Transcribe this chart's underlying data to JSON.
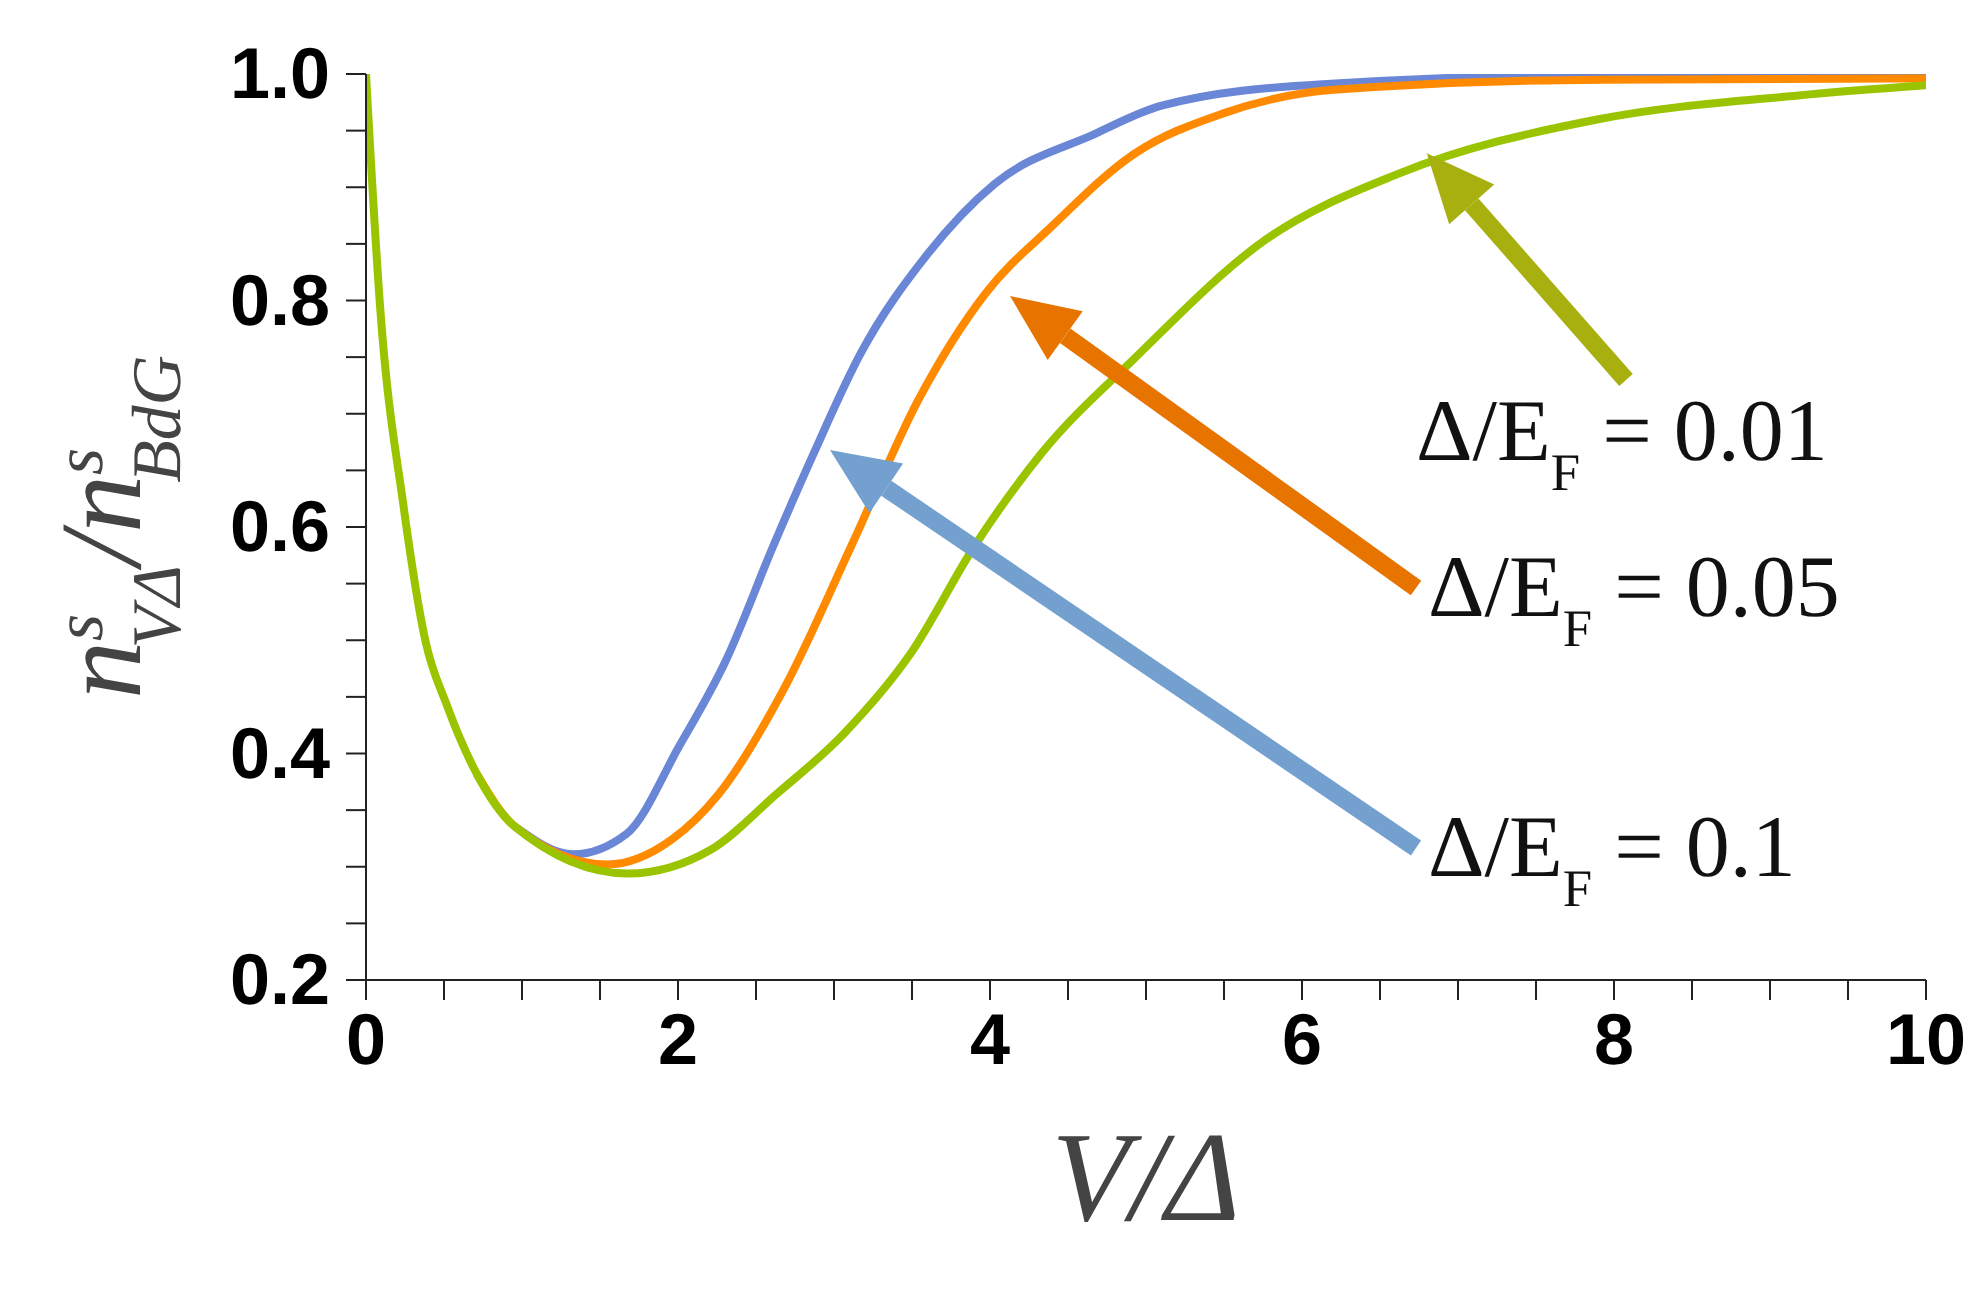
{
  "chart_data": {
    "type": "line",
    "xlabel": "V/Δ",
    "ylabel": "n$^{s}$$_{VΔ}$/n$^{s}$$_{BdG}$",
    "series": [
      {
        "color": "#6a86d6",
        "x": [
          0.95,
          1.33,
          1.67,
          2.01,
          2.31,
          2.61,
          2.87,
          3.17,
          3.6,
          4.03,
          4.67,
          5.1,
          6.13,
          8.27,
          10
        ],
        "values": [
          0.336,
          0.311,
          0.329,
          0.407,
          0.483,
          0.583,
          0.665,
          0.753,
          0.841,
          0.903,
          0.947,
          0.972,
          0.991,
          1.0,
          1.0
        ]
      },
      {
        "color": "#ff8a00",
        "x": [
          0.71,
          0.95,
          1.55,
          1.96,
          2.26,
          2.69,
          3.11,
          3.54,
          3.97,
          4.4,
          4.92,
          5.49,
          6.2,
          7.91,
          10
        ],
        "values": [
          0.382,
          0.336,
          0.302,
          0.324,
          0.364,
          0.46,
          0.583,
          0.712,
          0.806,
          0.866,
          0.929,
          0.965,
          0.986,
          0.995,
          0.996
        ]
      },
      {
        "color": "#9bc400",
        "x": [
          0,
          0.09,
          0.24,
          0.38,
          0.52,
          0.71,
          0.95,
          1.68,
          2.21,
          2.63,
          3.06,
          3.49,
          3.9,
          4.33,
          4.92,
          5.77,
          6.62,
          7.9,
          9.18,
          10
        ],
        "values": [
          1.0,
          0.795,
          0.619,
          0.5,
          0.442,
          0.382,
          0.336,
          0.294,
          0.315,
          0.364,
          0.417,
          0.488,
          0.583,
          0.665,
          0.748,
          0.854,
          0.912,
          0.96,
          0.981,
          0.99
        ]
      }
    ],
    "xlim": [
      0,
      10
    ],
    "xticks": [
      0,
      {
        "value": 0.5,
        "label": null
      },
      {
        "value": 1,
        "label": null
      },
      {
        "value": 1.5,
        "label": null
      },
      2,
      {
        "value": 2.5,
        "label": null
      },
      {
        "value": 3,
        "label": null
      },
      {
        "value": 3.5,
        "label": null
      },
      4,
      {
        "value": 4.5,
        "label": null
      },
      {
        "value": 5,
        "label": null
      },
      {
        "value": 5.5,
        "label": null
      },
      6,
      {
        "value": 6.5,
        "label": null
      },
      {
        "value": 7,
        "label": null
      },
      {
        "value": 7.5,
        "label": null
      },
      8,
      {
        "value": 8.5,
        "label": null
      },
      {
        "value": 9,
        "label": null
      },
      {
        "value": 9.5,
        "label": null
      },
      10
    ],
    "ylim": [
      0.2,
      1.0
    ],
    "yticks": [
      0.2,
      {
        "value": 0.25,
        "label": null
      },
      {
        "value": 0.3,
        "label": null
      },
      {
        "value": 0.35,
        "label": null
      },
      0.4,
      {
        "value": 0.45,
        "label": null
      },
      {
        "value": 0.5,
        "label": null
      },
      {
        "value": 0.55,
        "label": null
      },
      0.6,
      {
        "value": 0.65,
        "label": null
      },
      {
        "value": 0.7,
        "label": null
      },
      {
        "value": 0.75,
        "label": null
      },
      0.8,
      {
        "value": 0.85,
        "label": null
      },
      {
        "value": 0.9,
        "label": null
      },
      {
        "value": 0.95,
        "label": null
      },
      {
        "value": 1.0,
        "label": "1.0"
      }
    ],
    "grid": false,
    "marker": "none",
    "line_style": "solid",
    "annotations": [
      {
        "text": "Δ/E$_{F}$ = 0.01",
        "x": 6.8,
        "y": 0.93
      },
      "Δ/E$_{F}$ = 0.05",
      "Δ/E$_{F}$ = 0.1"
    ]
  }
}
